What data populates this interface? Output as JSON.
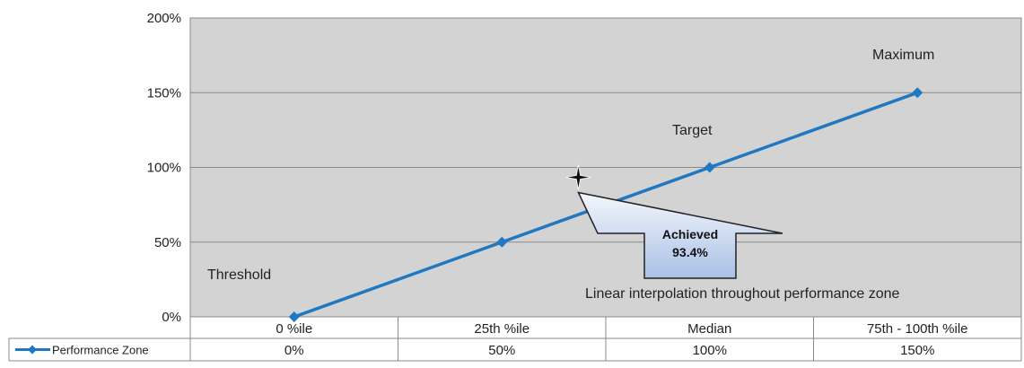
{
  "chart_data": {
    "type": "line",
    "categories": [
      "0 %ile",
      "25th %ile",
      "Median",
      "75th - 100th %ile"
    ],
    "series": [
      {
        "name": "Performance Zone",
        "values": [
          0,
          50,
          100,
          150
        ],
        "table_labels": [
          "0%",
          "50%",
          "100%",
          "150%"
        ],
        "color": "#1f78c1"
      }
    ],
    "ylim": [
      0,
      200
    ],
    "yticks": [
      "0%",
      "50%",
      "100%",
      "150%",
      "200%"
    ],
    "ytick_values": [
      0,
      50,
      100,
      150,
      200
    ],
    "grid": true,
    "plot_background": "#d3d3d3",
    "legend": "bottom-left data table",
    "annotations": {
      "threshold": "Threshold",
      "target": "Target",
      "maximum": "Maximum",
      "interpolation_note": "Linear interpolation throughout performance zone"
    },
    "achieved": {
      "label": "Achieved",
      "value_label": "93.4%",
      "value": 93.4,
      "category_position": 1.868
    }
  }
}
